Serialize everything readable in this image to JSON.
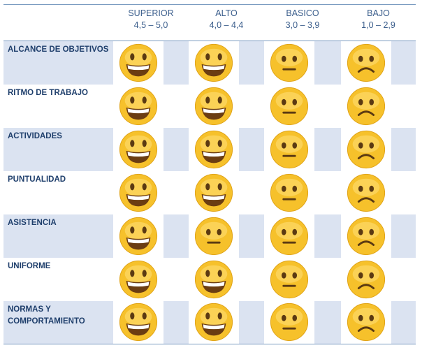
{
  "header": {
    "levels": [
      {
        "name": "SUPERIOR",
        "range": "4,5 – 5,0"
      },
      {
        "name": "ALTO",
        "range": "4,0 – 4,4"
      },
      {
        "name": "BASICO",
        "range": "3,0 – 3,9"
      },
      {
        "name": "BAJO",
        "range": "1,0 – 2,9"
      }
    ]
  },
  "rows": [
    {
      "label": "ALCANCE DE OBJETIVOS",
      "faces": [
        "grinning-face-icon",
        "grinning-face-icon",
        "neutral-face-icon",
        "frowning-face-icon"
      ]
    },
    {
      "label": "RITMO DE TRABAJO",
      "faces": [
        "grinning-face-icon",
        "grinning-face-icon",
        "neutral-face-icon",
        "frowning-face-icon"
      ]
    },
    {
      "label": "ACTIVIDADES",
      "faces": [
        "grinning-face-icon",
        "grinning-face-icon",
        "neutral-face-icon",
        "frowning-face-icon"
      ]
    },
    {
      "label": "PUNTUALIDAD",
      "faces": [
        "grinning-face-icon",
        "grinning-face-icon",
        "neutral-face-icon",
        "frowning-face-icon"
      ]
    },
    {
      "label": "ASISTENCIA",
      "faces": [
        "grinning-face-icon",
        "neutral-face-icon",
        "neutral-face-icon",
        "frowning-face-icon"
      ]
    },
    {
      "label": "UNIFORME",
      "faces": [
        "grinning-face-icon",
        "grinning-face-icon",
        "neutral-face-icon",
        "frowning-face-icon"
      ]
    },
    {
      "label": "NORMAS Y COMPORTAMIENTO",
      "faces": [
        "grinning-face-icon",
        "grinning-face-icon",
        "neutral-face-icon",
        "frowning-face-icon"
      ]
    }
  ],
  "colors": {
    "header_text": "#3b5e8c",
    "label_text": "#1f3f6c",
    "row_shade": "#dbe3f1",
    "rule": "#7a9bc0",
    "face_yellow": "#f6c12b"
  }
}
